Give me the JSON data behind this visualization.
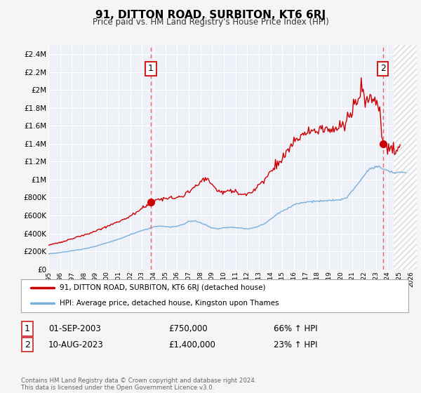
{
  "title": "91, DITTON ROAD, SURBITON, KT6 6RJ",
  "subtitle": "Price paid vs. HM Land Registry's House Price Index (HPI)",
  "legend_line1": "91, DITTON ROAD, SURBITON, KT6 6RJ (detached house)",
  "legend_line2": "HPI: Average price, detached house, Kingston upon Thames",
  "footer": "Contains HM Land Registry data © Crown copyright and database right 2024.\nThis data is licensed under the Open Government Licence v3.0.",
  "annotation1": {
    "label": "1",
    "date": "01-SEP-2003",
    "price": "£750,000",
    "pct": "66% ↑ HPI"
  },
  "annotation2": {
    "label": "2",
    "date": "10-AUG-2023",
    "price": "£1,400,000",
    "pct": "23% ↑ HPI"
  },
  "sale1_year": 2003.75,
  "sale1_price": 750000,
  "sale2_year": 2023.6,
  "sale2_price": 1400000,
  "vline1_x": 2003.75,
  "vline2_x": 2023.6,
  "ylim_min": 0,
  "ylim_max": 2500000,
  "xlim_min": 1995,
  "xlim_max": 2026.5,
  "hatch_start": 2024.5,
  "background_color": "#f5f5f5",
  "plot_bg_color": "#eef0f8",
  "hatch_color": "#cccccc",
  "grid_color": "#ffffff",
  "red_line_color": "#cc0000",
  "blue_line_color": "#7ab0d8",
  "vline_color": "#e86060",
  "marker_color": "#cc0000",
  "title_color": "#000000",
  "yticks": [
    0,
    200000,
    400000,
    600000,
    800000,
    1000000,
    1200000,
    1400000,
    1600000,
    1800000,
    2000000,
    2200000,
    2400000
  ],
  "ytick_labels": [
    "£0",
    "£200K",
    "£400K",
    "£600K",
    "£800K",
    "£1M",
    "£1.2M",
    "£1.4M",
    "£1.6M",
    "£1.8M",
    "£2M",
    "£2.2M",
    "£2.4M"
  ],
  "xticks": [
    1995,
    1996,
    1997,
    1998,
    1999,
    2000,
    2001,
    2002,
    2003,
    2004,
    2005,
    2006,
    2007,
    2008,
    2009,
    2010,
    2011,
    2012,
    2013,
    2014,
    2015,
    2016,
    2017,
    2018,
    2019,
    2020,
    2021,
    2022,
    2023,
    2024,
    2025,
    2026
  ]
}
